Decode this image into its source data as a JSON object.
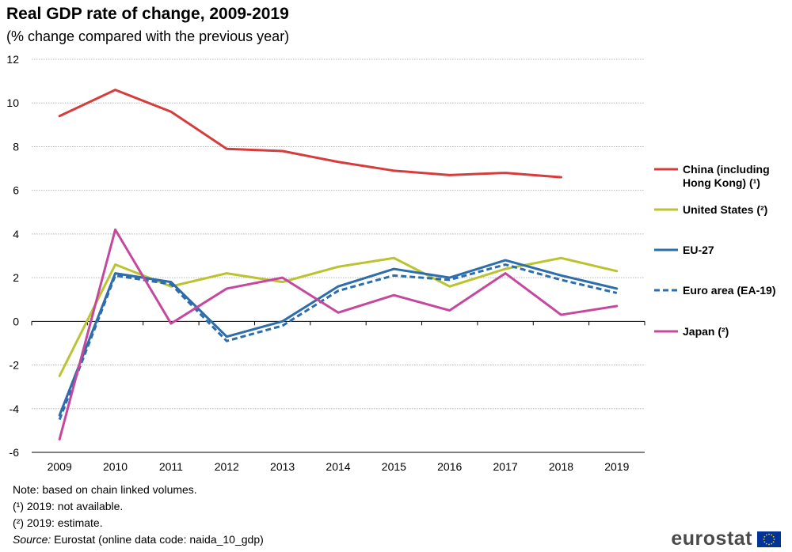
{
  "title": "Real GDP rate of change, 2009-2019",
  "subtitle": "(% change compared with the previous year)",
  "notes": {
    "note": "Note: based on chain linked volumes.",
    "fn1": "(¹) 2019: not available.",
    "fn2": "(²) 2019: estimate.",
    "source_label": "Source:",
    "source_text": " Eurostat (online data code: naida_10_gdp)"
  },
  "logo": {
    "text": "eurostat",
    "flag_color": "#003399",
    "star_color": "#FFCC00"
  },
  "chart_data": {
    "type": "line",
    "x": [
      "2009",
      "2010",
      "2011",
      "2012",
      "2013",
      "2014",
      "2015",
      "2016",
      "2017",
      "2018",
      "2019"
    ],
    "ylim": [
      -6,
      12
    ],
    "yticks": [
      -6,
      -4,
      -2,
      0,
      2,
      4,
      6,
      8,
      10,
      12
    ],
    "grid": true,
    "legend_position": "right",
    "series": [
      {
        "name": "China (including Hong Kong) (¹)",
        "legend_lines": [
          "China (including",
          "Hong Kong) (¹)"
        ],
        "color": "#D73C3C",
        "dashed": false,
        "values": [
          9.4,
          10.6,
          9.6,
          7.9,
          7.8,
          7.3,
          6.9,
          6.7,
          6.8,
          6.6,
          null
        ]
      },
      {
        "name": "United States (²)",
        "legend_lines": [
          "United States (²)"
        ],
        "color": "#B9C42F",
        "dashed": false,
        "values": [
          -2.5,
          2.6,
          1.6,
          2.2,
          1.8,
          2.5,
          2.9,
          1.6,
          2.4,
          2.9,
          2.3
        ]
      },
      {
        "name": "EU-27",
        "legend_lines": [
          "EU-27"
        ],
        "color": "#2E6DAB",
        "dashed": false,
        "values": [
          -4.3,
          2.2,
          1.8,
          -0.7,
          0.0,
          1.6,
          2.4,
          2.0,
          2.8,
          2.1,
          1.5
        ]
      },
      {
        "name": "Euro area (EA-19)",
        "legend_lines": [
          "Euro area (EA-19)"
        ],
        "color": "#2E6DAB",
        "dashed": true,
        "values": [
          -4.5,
          2.1,
          1.7,
          -0.9,
          -0.2,
          1.4,
          2.1,
          1.9,
          2.6,
          1.9,
          1.3
        ]
      },
      {
        "name": "Japan (²)",
        "legend_lines": [
          "Japan (²)"
        ],
        "color": "#C5489E",
        "dashed": false,
        "values": [
          -5.4,
          4.2,
          -0.1,
          1.5,
          2.0,
          0.4,
          1.2,
          0.5,
          2.2,
          0.3,
          0.7
        ]
      }
    ]
  }
}
